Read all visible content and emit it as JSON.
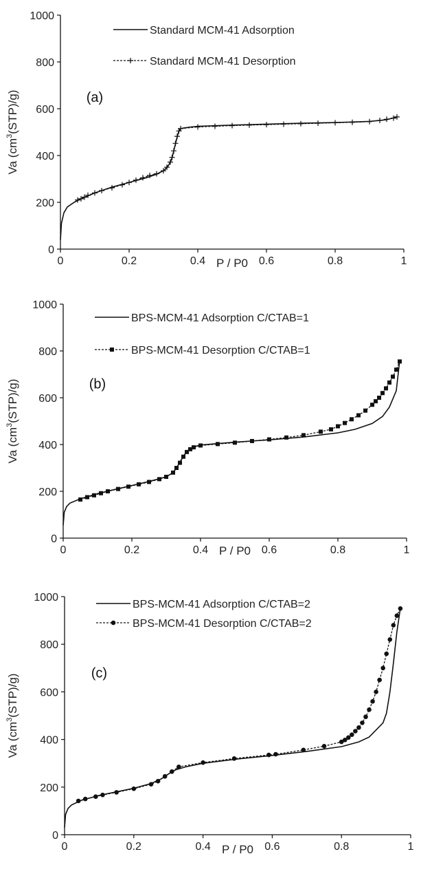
{
  "chart_data": [
    {
      "type": "line",
      "panel_label": "(a)",
      "xlabel": "P / P0",
      "ylabel_main": "Va (cm",
      "ylabel_sup": "3",
      "ylabel_tail": "(STP)/g)",
      "xlim": [
        0,
        1
      ],
      "ylim": [
        0,
        1000
      ],
      "xticks": [
        "0",
        "0.2",
        "0.4",
        "0.6",
        "0.8",
        "1"
      ],
      "yticks": [
        "0",
        "200",
        "400",
        "600",
        "800",
        "1000"
      ],
      "legend_position": "top-center",
      "series": [
        {
          "name": "Standard MCM-41 Adsorption",
          "style": "solid",
          "marker": "none",
          "x": [
            0.0,
            0.003,
            0.01,
            0.02,
            0.04,
            0.06,
            0.1,
            0.15,
            0.2,
            0.25,
            0.28,
            0.3,
            0.31,
            0.32,
            0.325,
            0.33,
            0.335,
            0.34,
            0.345,
            0.35,
            0.36,
            0.38,
            0.4,
            0.5,
            0.6,
            0.7,
            0.8,
            0.9,
            0.95,
            0.98
          ],
          "y": [
            40,
            110,
            155,
            180,
            200,
            215,
            240,
            265,
            285,
            305,
            320,
            335,
            348,
            370,
            390,
            420,
            450,
            480,
            505,
            515,
            518,
            522,
            525,
            530,
            534,
            538,
            541,
            546,
            553,
            565
          ]
        },
        {
          "name": "Standard MCM-41 Desorption",
          "style": "dashed",
          "marker": "plus",
          "x": [
            0.05,
            0.06,
            0.07,
            0.08,
            0.1,
            0.12,
            0.15,
            0.18,
            0.2,
            0.22,
            0.24,
            0.26,
            0.28,
            0.3,
            0.31,
            0.32,
            0.325,
            0.33,
            0.335,
            0.34,
            0.345,
            0.35,
            0.4,
            0.45,
            0.5,
            0.55,
            0.6,
            0.65,
            0.7,
            0.75,
            0.8,
            0.85,
            0.9,
            0.93,
            0.95,
            0.97,
            0.98
          ],
          "y": [
            210,
            215,
            222,
            230,
            240,
            250,
            262,
            275,
            285,
            295,
            305,
            315,
            322,
            335,
            350,
            372,
            392,
            420,
            452,
            482,
            505,
            515,
            522,
            525,
            528,
            530,
            532,
            534,
            536,
            538,
            540,
            542,
            545,
            550,
            555,
            560,
            565
          ]
        }
      ]
    },
    {
      "type": "line",
      "panel_label": "(b)",
      "xlabel": "P / P0",
      "ylabel_main": "Va (cm",
      "ylabel_sup": "3",
      "ylabel_tail": "(STP)/g)",
      "xlim": [
        0,
        1
      ],
      "ylim": [
        0,
        1000
      ],
      "xticks": [
        "0",
        "0.2",
        "0.4",
        "0.6",
        "0.8",
        "1"
      ],
      "yticks": [
        "0",
        "200",
        "400",
        "600",
        "800",
        "1000"
      ],
      "legend_position": "top-center",
      "series": [
        {
          "name": "BPS-MCM-41 Adsorption C/CTAB=1",
          "style": "solid",
          "marker": "none",
          "x": [
            0.0,
            0.003,
            0.01,
            0.02,
            0.05,
            0.1,
            0.15,
            0.2,
            0.25,
            0.3,
            0.32,
            0.33,
            0.34,
            0.35,
            0.36,
            0.37,
            0.38,
            0.4,
            0.5,
            0.6,
            0.7,
            0.8,
            0.85,
            0.9,
            0.93,
            0.95,
            0.97,
            0.98
          ],
          "y": [
            55,
            110,
            135,
            150,
            168,
            190,
            208,
            225,
            242,
            262,
            280,
            300,
            325,
            350,
            370,
            382,
            390,
            398,
            410,
            420,
            432,
            450,
            465,
            490,
            520,
            560,
            630,
            760
          ]
        },
        {
          "name": "BPS-MCM-41 Desorption C/CTAB=1",
          "style": "dashed",
          "marker": "square",
          "x": [
            0.05,
            0.07,
            0.09,
            0.11,
            0.13,
            0.16,
            0.19,
            0.22,
            0.25,
            0.28,
            0.3,
            0.32,
            0.33,
            0.34,
            0.35,
            0.36,
            0.37,
            0.38,
            0.4,
            0.45,
            0.5,
            0.55,
            0.6,
            0.65,
            0.7,
            0.75,
            0.78,
            0.8,
            0.82,
            0.84,
            0.86,
            0.88,
            0.9,
            0.91,
            0.92,
            0.93,
            0.94,
            0.95,
            0.96,
            0.97,
            0.98
          ],
          "y": [
            165,
            175,
            183,
            192,
            200,
            210,
            220,
            230,
            240,
            252,
            262,
            280,
            300,
            322,
            348,
            368,
            380,
            388,
            396,
            402,
            408,
            415,
            422,
            430,
            440,
            455,
            465,
            478,
            492,
            508,
            525,
            545,
            570,
            585,
            600,
            620,
            640,
            665,
            690,
            720,
            755
          ]
        }
      ]
    },
    {
      "type": "line",
      "panel_label": "(c)",
      "xlabel": "P / P0",
      "ylabel_main": "Va (cm",
      "ylabel_sup": "3",
      "ylabel_tail": "(STP)/g)",
      "xlim": [
        0,
        1
      ],
      "ylim": [
        0,
        1000
      ],
      "xticks": [
        "0",
        "0.2",
        "0.4",
        "0.6",
        "0.8",
        "1"
      ],
      "yticks": [
        "0",
        "200",
        "400",
        "600",
        "800",
        "1000"
      ],
      "legend_position": "top-center",
      "series": [
        {
          "name": "BPS-MCM-41 Adsorption C/CTAB=2",
          "style": "solid",
          "marker": "none",
          "x": [
            0.0,
            0.003,
            0.01,
            0.02,
            0.05,
            0.1,
            0.15,
            0.2,
            0.25,
            0.28,
            0.3,
            0.32,
            0.35,
            0.4,
            0.5,
            0.6,
            0.7,
            0.8,
            0.85,
            0.88,
            0.9,
            0.92,
            0.93,
            0.94,
            0.95,
            0.96,
            0.97
          ],
          "y": [
            30,
            85,
            110,
            125,
            145,
            165,
            180,
            195,
            215,
            235,
            255,
            272,
            285,
            300,
            318,
            333,
            350,
            370,
            390,
            410,
            440,
            470,
            510,
            600,
            720,
            850,
            950
          ]
        },
        {
          "name": "BPS-MCM-41 Desorption C/CTAB=2",
          "style": "dashed",
          "marker": "circle",
          "x": [
            0.04,
            0.06,
            0.09,
            0.11,
            0.15,
            0.2,
            0.25,
            0.27,
            0.29,
            0.31,
            0.33,
            0.4,
            0.49,
            0.59,
            0.61,
            0.69,
            0.75,
            0.8,
            0.81,
            0.82,
            0.83,
            0.84,
            0.85,
            0.86,
            0.87,
            0.88,
            0.89,
            0.9,
            0.91,
            0.92,
            0.93,
            0.94,
            0.95,
            0.96,
            0.97
          ],
          "y": [
            142,
            150,
            160,
            167,
            178,
            193,
            212,
            225,
            245,
            265,
            285,
            303,
            320,
            335,
            338,
            356,
            372,
            390,
            398,
            408,
            420,
            435,
            450,
            470,
            495,
            525,
            560,
            600,
            650,
            700,
            760,
            820,
            880,
            920,
            950
          ]
        }
      ]
    }
  ]
}
